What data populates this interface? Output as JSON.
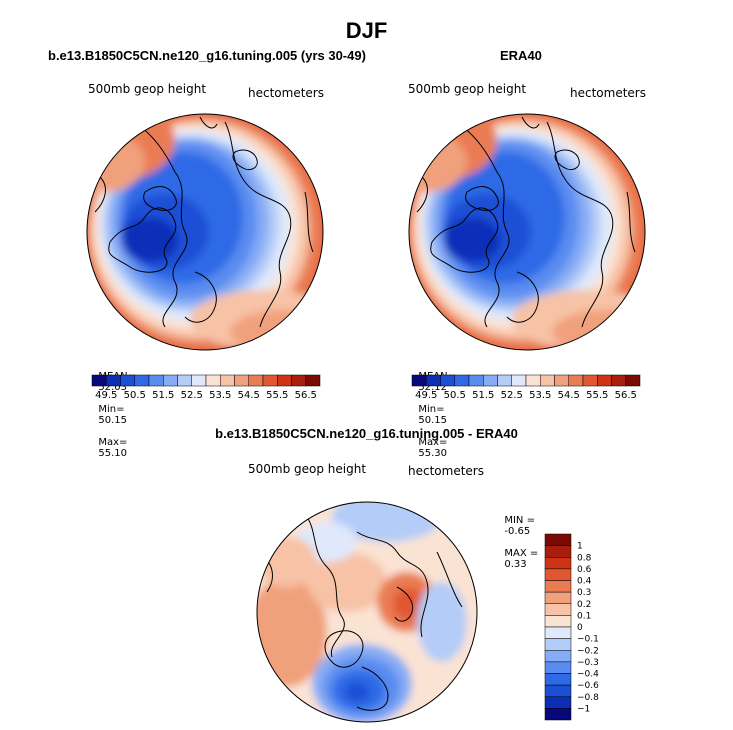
{
  "page": {
    "season": "DJF"
  },
  "panels": [
    {
      "id": "model",
      "title": "b.e13.B1850C5CN.ne120_g16.tuning.005 (yrs 30-49)",
      "left_label": "500mb geop height",
      "right_label": "hectometers",
      "stats": {
        "mean_label": "MEAN=",
        "mean": "52.03",
        "min_label": "Min=",
        "min": "50.15",
        "max_label": "Max=",
        "max": "55.10"
      },
      "colorbar_ticks": [
        "49.5",
        "50.5",
        "51.5",
        "52.5",
        "53.5",
        "54.5",
        "55.5",
        "56.5"
      ]
    },
    {
      "id": "obs",
      "title": "ERA40",
      "left_label": "500mb geop height",
      "right_label": "hectometers",
      "stats": {
        "mean_label": "MEAN=",
        "mean": "52.12",
        "min_label": "Min=",
        "min": "50.15",
        "max_label": "Max=",
        "max": "55.30"
      },
      "colorbar_ticks": [
        "49.5",
        "50.5",
        "51.5",
        "52.5",
        "53.5",
        "54.5",
        "55.5",
        "56.5"
      ]
    }
  ],
  "diff_panel": {
    "title": "b.e13.B1850C5CN.ne120_g16.tuning.005 - ERA40",
    "left_label": "500mb geop height",
    "right_label": "hectometers",
    "stats": {
      "min_label": "MIN =",
      "min": "-0.65",
      "max_label": "MAX =",
      "max": "0.33"
    },
    "colorbar_ticks": [
      "1",
      "0.8",
      "0.6",
      "0.4",
      "0.3",
      "0.2",
      "0.1",
      "0",
      "−0.1",
      "−0.2",
      "−0.3",
      "−0.4",
      "−0.6",
      "−0.8",
      "−1"
    ]
  },
  "colors": {
    "abs_scale": [
      "#08087a",
      "#0c2db8",
      "#1b4fd6",
      "#2f6ae6",
      "#5a8cf0",
      "#86acf5",
      "#b4ccf8",
      "#dfe9fb",
      "#fbe3d4",
      "#f7c2a6",
      "#f1a07c",
      "#ea7b53",
      "#e25731",
      "#cd3414",
      "#a81d0b",
      "#7a0a06"
    ],
    "diff_scale": [
      "#7a0a06",
      "#a81d0b",
      "#cd3414",
      "#e25731",
      "#ea7b53",
      "#f1a07c",
      "#f7c2a6",
      "#fbe3d4",
      "#dfe9fb",
      "#b4ccf8",
      "#86acf5",
      "#5a8cf0",
      "#2f6ae6",
      "#1b4fd6",
      "#0c2db8",
      "#08087a"
    ]
  }
}
